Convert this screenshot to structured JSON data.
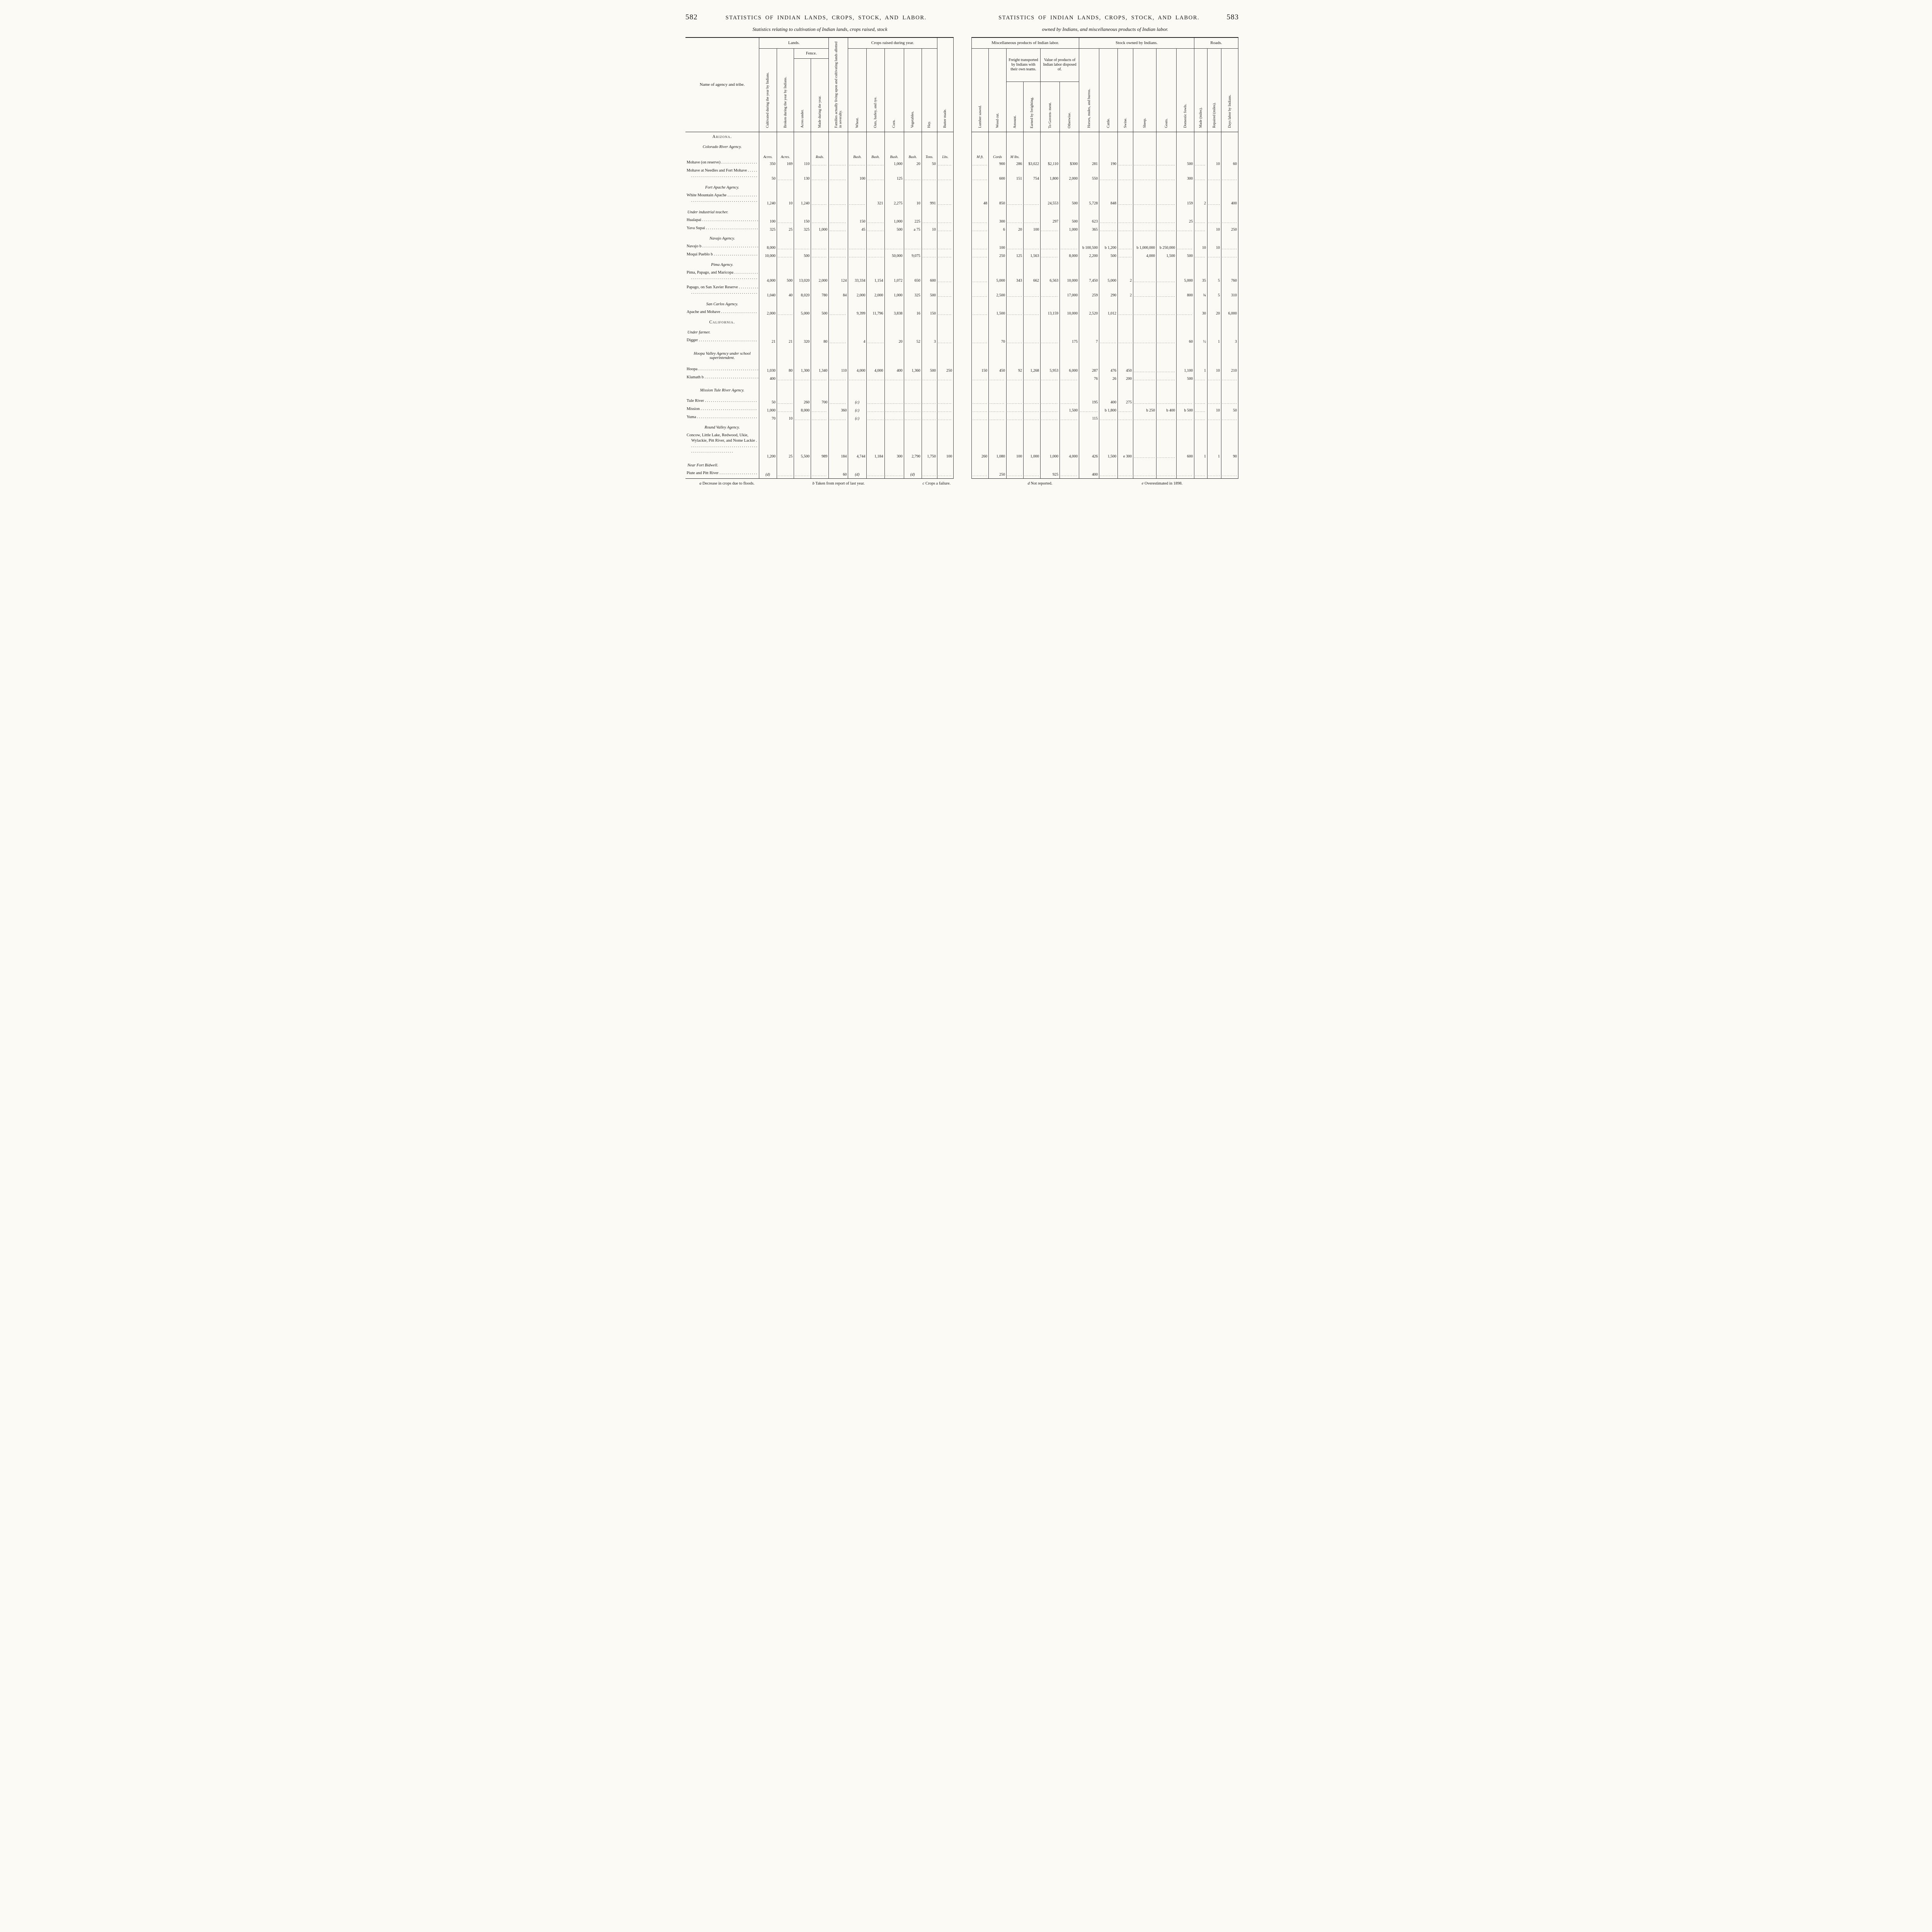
{
  "left_page": {
    "folio": "582",
    "running_title": "STATISTICS OF INDIAN LANDS, CROPS, STOCK, AND LABOR.",
    "caption": "Statistics relating to cultivation of Indian lands, crops raised, stock",
    "footnotes": [
      {
        "letter": "a",
        "text": "Decrease in crops due to floods."
      },
      {
        "letter": "b",
        "text": "Taken from report of last year."
      },
      {
        "letter": "c",
        "text": "Crops a failure."
      }
    ]
  },
  "right_page": {
    "folio": "583",
    "running_title": "STATISTICS OF INDIAN LANDS, CROPS, STOCK, AND LABOR.",
    "caption": "owned by Indians, and miscellaneous products of Indian labor.",
    "footnotes": [
      {
        "letter": "d",
        "text": "Not reported."
      },
      {
        "letter": "e",
        "text": "Overestimated in 1898."
      }
    ]
  },
  "left_table": {
    "stub_header": "Name of agency and tribe.",
    "group_lands": "Lands.",
    "group_fence": "Fence.",
    "group_crops": "Crops raised during year.",
    "col_cultivated": "Cultivated during the year by Indians.",
    "col_broken": "Broken during the year by Indians.",
    "col_acres_under": "Acres under.",
    "col_made_year": "Made during the year.",
    "col_families": "Families actually living upon and cultivating lands allotted in severalty.",
    "col_wheat": "Wheat.",
    "col_oats": "Oats, barley, and rye.",
    "col_corn": "Corn.",
    "col_vegetables": "Vegetables.",
    "col_hay": "Hay.",
    "col_butter": "Butter made.",
    "units": [
      "Acres.",
      "Acres.",
      "",
      "Rods.",
      "",
      "Bush.",
      "Bush.",
      "Bush.",
      "Bush.",
      "Tons.",
      "Lbs."
    ]
  },
  "right_table": {
    "group_misc": "Miscellaneous products of Indian labor.",
    "group_stock": "Stock owned by Indians.",
    "group_roads": "Roads.",
    "sub_freight": "Freight transported by Indians with their own teams.",
    "sub_value": "Value of products of Indian labor disposed of.",
    "col_lumber": "Lumber sawed.",
    "col_wood": "Wood cut.",
    "col_amount": "Amount.",
    "col_earned": "Earned by freighting.",
    "col_to_gov": "To Govern- ment.",
    "col_otherwise": "Otherwise.",
    "col_horses": "Horses, mules, and burros.",
    "col_cattle": "Cattle.",
    "col_swine": "Swine.",
    "col_sheep": "Sheep.",
    "col_goats": "Goats.",
    "col_fowls": "Domestic fowls.",
    "col_made_miles": "Made (miles).",
    "col_repaired": "Repaired (miles).",
    "col_days": "Days labor by Indians.",
    "units": [
      "M ft.",
      "Cords",
      "M lbs.",
      "",
      "",
      "",
      "",
      "",
      "",
      "",
      "",
      "",
      "",
      "",
      ""
    ]
  },
  "rows": [
    {
      "type": "state",
      "label": "Arizona.",
      "lines": 1
    },
    {
      "type": "agency",
      "label": "Colorado River Agency.",
      "lines": 1
    },
    {
      "type": "units",
      "lines": 1
    },
    {
      "type": "data",
      "name": "Mohave (on reserve)",
      "lines": 1,
      "left": [
        "350",
        "169",
        "110",
        "",
        "",
        "",
        "",
        "1,000",
        "20",
        "50",
        ""
      ],
      "right": [
        "",
        "900",
        "286",
        "$3,022",
        "$2,110",
        "$300",
        "281",
        "190",
        "",
        "",
        "",
        "500",
        "",
        "10",
        "60"
      ]
    },
    {
      "type": "data",
      "name": "Mohave at Needles and Fort Mohave",
      "lines": 2,
      "left": [
        "50",
        "",
        "130",
        "",
        "",
        "100",
        "",
        "125",
        "",
        "",
        ""
      ],
      "right": [
        "",
        "600",
        "151",
        "754",
        "1,800",
        "2,000",
        "550",
        "",
        "",
        "",
        "",
        "300",
        "",
        "",
        ""
      ]
    },
    {
      "type": "agency",
      "label": "Fort Apache Agency.",
      "lines": 1
    },
    {
      "type": "data",
      "name": "White Mountain Apache",
      "lines": 2,
      "left": [
        "1,240",
        "10",
        "1,240",
        "",
        "",
        "",
        "321",
        "2,275",
        "10",
        "991",
        ""
      ],
      "right": [
        "48",
        "850",
        "",
        "",
        "24,553",
        "500",
        "5,728",
        "848",
        "",
        "",
        "",
        "159",
        "2",
        "",
        "400"
      ]
    },
    {
      "type": "note",
      "label": "Under industrial teacher.",
      "lines": 1
    },
    {
      "type": "data",
      "name": "Hualapai",
      "lines": 1,
      "left": [
        "100",
        "",
        "150",
        "",
        "",
        "150",
        "",
        "1,000",
        "225",
        "",
        ""
      ],
      "right": [
        "",
        "300",
        "",
        "",
        "297",
        "500",
        "623",
        "",
        "",
        "",
        "",
        "25",
        "",
        "",
        ""
      ]
    },
    {
      "type": "data",
      "name": "Yava Supai",
      "lines": 1,
      "left": [
        "325",
        "25",
        "325",
        "1,000",
        "",
        "45",
        "",
        "500",
        "a 75",
        "10",
        ""
      ],
      "right": [
        "",
        "6",
        "20",
        "100",
        "",
        "1,000",
        "365",
        "",
        "",
        "",
        "",
        "",
        "",
        "10",
        "250"
      ]
    },
    {
      "type": "agency",
      "label": "Navajo Agency.",
      "lines": 1
    },
    {
      "type": "data",
      "name": "Navajo b",
      "lines": 1,
      "left": [
        "8,000",
        "",
        "",
        "",
        "",
        "",
        "",
        "",
        "",
        "",
        ""
      ],
      "right": [
        "",
        "100",
        "",
        "",
        "",
        "",
        "b 100,500",
        "b 1,200",
        "",
        "b 1,000,000",
        "b 250,000",
        "",
        "10",
        "10",
        ""
      ]
    },
    {
      "type": "data",
      "name": "Moqui Pueblo b",
      "lines": 1,
      "left": [
        "10,000",
        "",
        "500",
        "",
        "",
        "",
        "",
        "50,000",
        "9,075",
        "",
        ""
      ],
      "right": [
        "",
        "250",
        "125",
        "1,563",
        "",
        "8,000",
        "2,200",
        "500",
        "",
        "4,000",
        "1,500",
        "500",
        "",
        "",
        ""
      ]
    },
    {
      "type": "agency",
      "label": "Pima Agency.",
      "lines": 1
    },
    {
      "type": "data",
      "name": "Pima, Papago, and Maricopa",
      "lines": 2,
      "left": [
        "4,000",
        "500",
        "13,020",
        "2,000",
        "124",
        "33,334",
        "1,154",
        "1,072",
        "650",
        "600",
        ""
      ],
      "right": [
        "",
        "5,000",
        "343",
        "662",
        "6,563",
        "10,000",
        "7,450",
        "5,000",
        "2",
        "",
        "",
        "5,000",
        "35",
        "5",
        "760"
      ]
    },
    {
      "type": "data",
      "name": "Papago, on San Xavier Reserve",
      "lines": 2,
      "left": [
        "1,040",
        "40",
        "8,020",
        "780",
        "84",
        "2,000",
        "2,000",
        "1,000",
        "325",
        "500",
        ""
      ],
      "right": [
        "",
        "2,500",
        "",
        "",
        "",
        "17,000",
        "259",
        "290",
        "2",
        "",
        "",
        "800",
        "¾",
        "5",
        "310"
      ]
    },
    {
      "type": "agency",
      "label": "San Carlos Agency.",
      "lines": 1
    },
    {
      "type": "data",
      "name": "Apache and Mohave",
      "lines": 1,
      "left": [
        "2,000",
        "",
        "5,000",
        "500",
        "",
        "9,399",
        "11,796",
        "3,838",
        "16",
        "150",
        ""
      ],
      "right": [
        "",
        "1,500",
        "",
        "",
        "13,159",
        "10,000",
        "2,520",
        "1,012",
        "",
        "",
        "",
        "",
        "30",
        "20",
        "6,000"
      ]
    },
    {
      "type": "state",
      "label": "California.",
      "lines": 1
    },
    {
      "type": "note",
      "label": "Under farmer.",
      "lines": 1
    },
    {
      "type": "data",
      "name": "Digger",
      "lines": 1,
      "left": [
        "21",
        "21",
        "320",
        "80",
        "",
        "4",
        "",
        "20",
        "52",
        "3",
        ""
      ],
      "right": [
        "",
        "70",
        "",
        "",
        "",
        "175",
        "7",
        "",
        "",
        "",
        "",
        "60",
        "½",
        "1",
        "3"
      ]
    },
    {
      "type": "agency",
      "label": "Hoopa Valley Agency under school superintendent.",
      "lines": 3
    },
    {
      "type": "data",
      "name": "Hoopa",
      "lines": 1,
      "left": [
        "1,030",
        "80",
        "1,300",
        "1,340",
        "110",
        "4,000",
        "4,000",
        "400",
        "1,360",
        "500",
        "250"
      ],
      "right": [
        "150",
        "450",
        "92",
        "1,268",
        "5,953",
        "6,000",
        "287",
        "476",
        "450",
        "",
        "",
        "1,100",
        "1",
        "10",
        "210"
      ]
    },
    {
      "type": "data",
      "name": "Klamath b",
      "lines": 1,
      "left": [
        "400",
        "",
        "",
        "",
        "",
        "",
        "",
        "",
        "",
        "",
        ""
      ],
      "right": [
        "",
        "",
        "",
        "",
        "",
        "",
        "76",
        "26",
        "200",
        "",
        "",
        "500",
        "",
        "",
        ""
      ]
    },
    {
      "type": "agency",
      "label": "Mission Tule River Agency.",
      "lines": 2
    },
    {
      "type": "data",
      "name": "Tule River",
      "lines": 1,
      "left": [
        "50",
        "",
        "260",
        "700",
        "",
        "(c)",
        "",
        "",
        "",
        "",
        ""
      ],
      "right": [
        "",
        "",
        "",
        "",
        "",
        "",
        "195",
        "400",
        "275",
        "",
        "",
        "",
        "",
        "",
        ""
      ]
    },
    {
      "type": "data",
      "name": "Mission",
      "lines": 1,
      "left": [
        "1,000",
        "",
        "8,000",
        "",
        "360",
        "(c)",
        "",
        "",
        "",
        "",
        ""
      ],
      "right": [
        "",
        "",
        "",
        "",
        "",
        "1,500",
        "",
        "b 1,800",
        "",
        "b 250",
        "b 400",
        "b 500",
        "",
        "10",
        "50"
      ]
    },
    {
      "type": "data",
      "name": "Yuma",
      "lines": 1,
      "left": [
        "70",
        "10",
        "",
        "",
        "",
        "(c)",
        "",
        "",
        "",
        "",
        ""
      ],
      "right": [
        "",
        "",
        "",
        "",
        "",
        "",
        "115",
        "",
        "",
        "",
        "",
        "",
        "",
        "",
        ""
      ]
    },
    {
      "type": "agency",
      "label": "Round Valley Agency.",
      "lines": 1
    },
    {
      "type": "data",
      "name": "Concow, Little Lake, Redwood, Ukie, Wylackie, Pitt River, and Nome Lackie",
      "lines": 4,
      "left": [
        "1,200",
        "25",
        "5,500",
        "989",
        "184",
        "4,744",
        "1,184",
        "300",
        "2,790",
        "1,750",
        "100"
      ],
      "right": [
        "260",
        "1,080",
        "100",
        "1,000",
        "1,000",
        "4,000",
        "426",
        "1,500",
        "e 300",
        "",
        "",
        "600",
        "1",
        "1",
        "90"
      ]
    },
    {
      "type": "note",
      "label": "Near Fort Bidwell.",
      "lines": 1
    },
    {
      "type": "data",
      "name": "Piute and Pitt River",
      "lines": 1,
      "left": [
        "(d)",
        "",
        "",
        "",
        "60",
        "(d)",
        "",
        "",
        "(d)",
        "",
        ""
      ],
      "right": [
        "",
        "250",
        "",
        "",
        "925",
        "",
        "400",
        "",
        "",
        "",
        "",
        "",
        "",
        "",
        ""
      ]
    }
  ]
}
